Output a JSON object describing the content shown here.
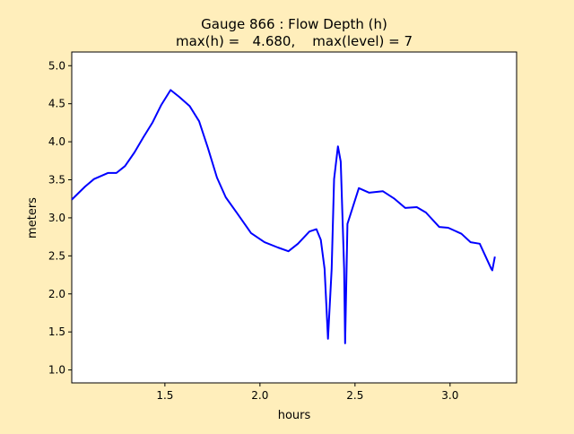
{
  "chart_data": {
    "type": "line",
    "title": "Gauge 866 : Flow Depth (h)",
    "subtitle": "max(h) =   4.680,    max(level) = 7",
    "xlabel": "hours",
    "ylabel": "meters",
    "xlim": [
      1.01,
      3.35
    ],
    "ylim": [
      0.83,
      5.18
    ],
    "xticks": [
      1.5,
      2.0,
      2.5,
      3.0
    ],
    "xtick_labels": [
      "1.5",
      "2.0",
      "2.5",
      "3.0"
    ],
    "yticks": [
      1.0,
      1.5,
      2.0,
      2.5,
      3.0,
      3.5,
      4.0,
      4.5,
      5.0
    ],
    "ytick_labels": [
      "1.0",
      "1.5",
      "2.0",
      "2.5",
      "3.0",
      "3.5",
      "4.0",
      "4.5",
      "5.0"
    ],
    "grid": false,
    "series": [
      {
        "name": "h",
        "color": "#0000ff",
        "x": [
          1.01,
          1.08,
          1.127,
          1.2,
          1.245,
          1.29,
          1.34,
          1.387,
          1.434,
          1.48,
          1.53,
          1.575,
          1.63,
          1.68,
          1.726,
          1.774,
          1.82,
          1.88,
          1.953,
          2.024,
          2.094,
          2.15,
          2.2,
          2.26,
          2.297,
          2.32,
          2.34,
          2.358,
          2.377,
          2.39,
          2.41,
          2.425,
          2.443,
          2.448,
          2.46,
          2.52,
          2.575,
          2.646,
          2.708,
          2.764,
          2.825,
          2.873,
          2.943,
          2.99,
          3.06,
          3.108,
          3.156,
          3.217,
          3.222,
          3.236
        ],
        "y": [
          3.24,
          3.41,
          3.51,
          3.59,
          3.59,
          3.68,
          3.86,
          4.06,
          4.25,
          4.48,
          4.68,
          4.59,
          4.47,
          4.27,
          3.92,
          3.53,
          3.27,
          3.06,
          2.8,
          2.68,
          2.61,
          2.56,
          2.66,
          2.82,
          2.85,
          2.71,
          2.33,
          1.41,
          2.33,
          3.51,
          3.94,
          3.74,
          2.33,
          1.35,
          2.92,
          3.39,
          3.33,
          3.35,
          3.25,
          3.13,
          3.14,
          3.07,
          2.88,
          2.87,
          2.79,
          2.68,
          2.66,
          2.33,
          2.31,
          2.49
        ]
      }
    ]
  }
}
